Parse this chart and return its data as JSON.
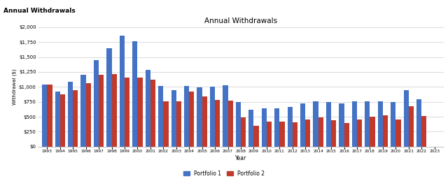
{
  "title": "Annual Withdrawals",
  "header": "Annual Withdrawals",
  "xlabel": "Year",
  "ylabel": "Withdrawal ($)",
  "years": [
    1993,
    1994,
    1995,
    1996,
    1997,
    1998,
    1999,
    2000,
    2001,
    2002,
    2003,
    2004,
    2005,
    2006,
    2007,
    2008,
    2009,
    2010,
    2011,
    2012,
    2013,
    2014,
    2015,
    2016,
    2017,
    2018,
    2019,
    2020,
    2021,
    2022,
    2023
  ],
  "portfolio1": [
    1040,
    920,
    1085,
    1200,
    1450,
    1650,
    1855,
    1760,
    1290,
    1010,
    945,
    1020,
    988,
    998,
    1030,
    750,
    615,
    637,
    643,
    660,
    720,
    758,
    743,
    718,
    758,
    758,
    758,
    748,
    940,
    788,
    0
  ],
  "portfolio2": [
    1040,
    870,
    950,
    1060,
    1200,
    1220,
    1150,
    1160,
    1120,
    760,
    760,
    920,
    840,
    780,
    770,
    490,
    350,
    415,
    415,
    408,
    455,
    488,
    438,
    398,
    455,
    498,
    528,
    455,
    678,
    518,
    0
  ],
  "color1": "#4472C4",
  "color2": "#C0392B",
  "ylim": [
    0,
    2000
  ],
  "yticks": [
    0,
    250,
    500,
    750,
    1000,
    1250,
    1500,
    1750,
    2000
  ],
  "legend1": "Portfolio 1",
  "legend2": "Portfolio 2",
  "bg_color": "#ffffff",
  "header_bg": "#e0e0e0",
  "grid_color": "#cccccc"
}
